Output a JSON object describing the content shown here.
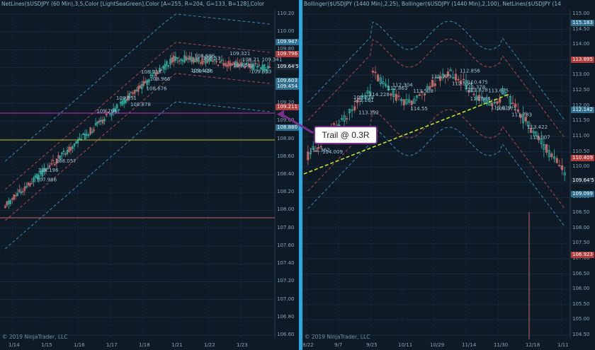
{
  "left": {
    "title": "NetLines($USDJPY (60 Min),3,5,Color [LightSeaGreen],Color [A=255, R=204, G=133, B=128],Color [A=255, R=0, G=131,",
    "copyright": "© 2019 NinjaTrader, LLC",
    "price_axis": [
      "110.20",
      "110.00",
      "109.80",
      "109.60",
      "109.40",
      "109.20",
      "109.00",
      "108.80",
      "108.60",
      "108.40",
      "108.20",
      "108.00",
      "107.80",
      "107.60",
      "107.40",
      "107.20",
      "107.00",
      "106.80",
      "106.60"
    ],
    "date_axis": [
      "1/14",
      "1/15",
      "1/16",
      "1/17",
      "1/18",
      "1/21",
      "1/22",
      "1/23"
    ],
    "price_tags": [
      {
        "label": "109.947",
        "color": "#2f6f8f"
      },
      {
        "label": "109.796",
        "color": "#b23b3b"
      },
      {
        "label": "109.64'5",
        "color": "#1b2a36"
      },
      {
        "label": "109.603",
        "color": "#2f6f8f"
      },
      {
        "label": "109.454",
        "color": "#2f6f8f"
      },
      {
        "label": "109.211",
        "color": "#b23b3b"
      },
      {
        "label": "108.880",
        "color": "#2f6f8f"
      }
    ],
    "annotations": [
      "109.693",
      "109.532",
      "109.321",
      "108.21",
      "109.951",
      "109.409",
      "109.341",
      "108.057",
      "108.966",
      "108.878",
      "108.758",
      "108.886",
      "108.53",
      "108.426",
      "108.676",
      "108.196",
      "107.986",
      "109.794"
    ]
  },
  "right": {
    "title": "Bollinger($USDJPY (1440 Min),2,25), Bollinger($USDJPY (1440 Min),2,100), NetLines($USDJPY (1440 Min),3,5,Color",
    "copyright": "© 2019 NinjaTrader, LLC",
    "price_axis": [
      "115.00",
      "114.50",
      "114.00",
      "113.50",
      "113.00",
      "112.50",
      "112.00",
      "111.50",
      "111.00",
      "110.50",
      "110.00",
      "109.50",
      "109.00",
      "108.50",
      "108.00",
      "107.50",
      "107.00",
      "106.50",
      "106.00",
      "105.50",
      "105.00",
      "104.50"
    ],
    "date_axis": [
      "8/22",
      "9/7",
      "9/25",
      "10/11",
      "10/29",
      "11/14",
      "11/30",
      "12/18",
      "1/11"
    ],
    "price_tags": [
      {
        "label": "115.183",
        "color": "#2f6f8f"
      },
      {
        "label": "113.895",
        "color": "#b23b3b"
      },
      {
        "label": "112.142",
        "color": "#2f6f8f"
      },
      {
        "label": "110.409",
        "color": "#b23b3b"
      },
      {
        "label": "109.64'5",
        "color": "#1b2a36"
      },
      {
        "label": "109.099",
        "color": "#2f6f8f"
      },
      {
        "label": "106.923",
        "color": "#b23b3b"
      }
    ],
    "annotations": [
      "114.55",
      "113.508",
      "113.392",
      "114.228",
      "114.009",
      "113.675",
      "113.422",
      "112.856",
      "113.007",
      "112.554",
      "112.304",
      "111.362",
      "111.019",
      "110.475",
      "111.779",
      "111.828",
      "111.783",
      "111.378",
      "110.686",
      "109.774",
      "108.371",
      "108.125",
      "107.805",
      "112.161",
      "112.863"
    ]
  },
  "callout": {
    "label": "Trail @ 0.3R"
  },
  "colors": {
    "background": "#0e1b27",
    "divider": "#29a9e1",
    "band_blue": "#3b88b8",
    "band_red": "#b04848",
    "trend_line": "#c8e02a",
    "candle_up": "#2fb7a6",
    "candle_down": "#c06464",
    "magenta_line": "#c030c0"
  }
}
